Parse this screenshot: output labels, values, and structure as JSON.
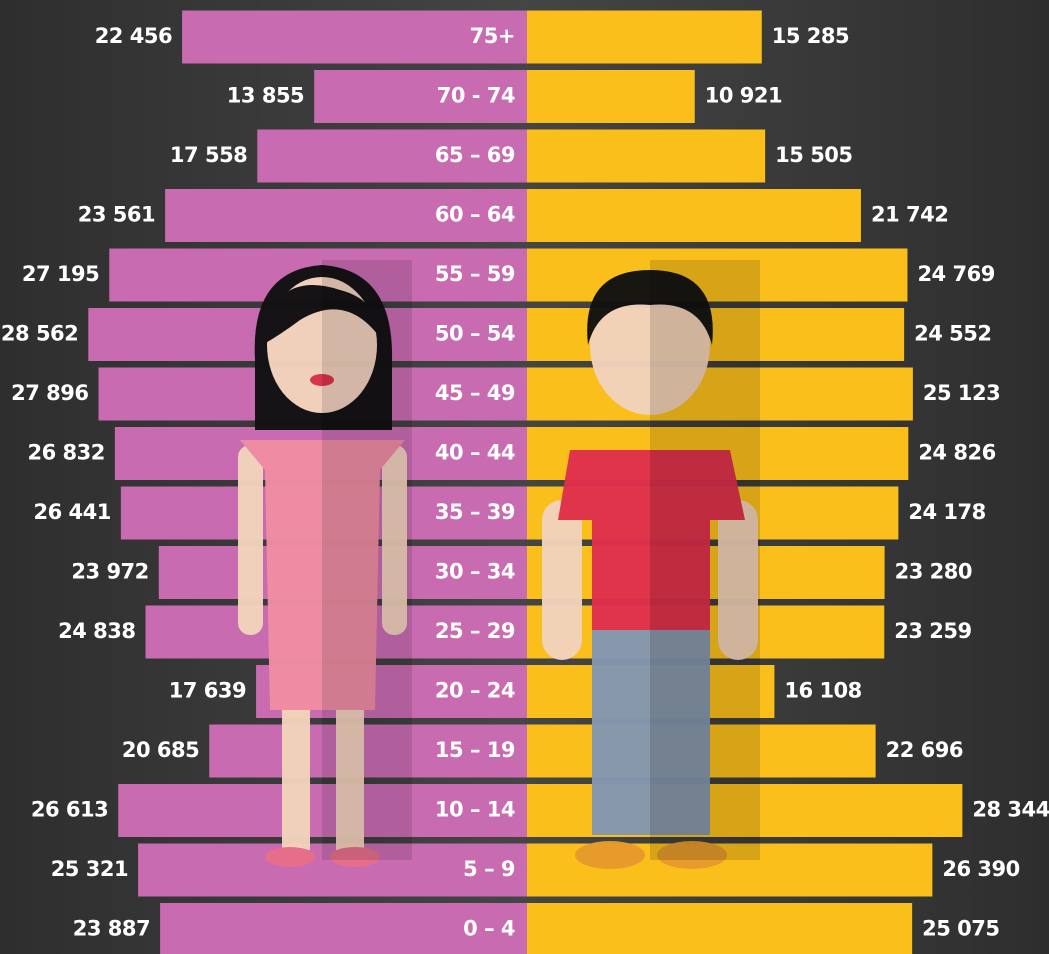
{
  "chart_data": {
    "type": "pyramid",
    "categories": [
      "75+",
      "70 - 74",
      "65 – 69",
      "60 – 64",
      "55 – 59",
      "50 – 54",
      "45 – 49",
      "40 – 44",
      "35 – 39",
      "30 – 34",
      "25 – 29",
      "20 – 24",
      "15 – 19",
      "10 – 14",
      "5 – 9",
      "0 – 4"
    ],
    "series": [
      {
        "color": "#c86bb1",
        "side": "left",
        "values": [
          22456,
          13855,
          17558,
          23561,
          27195,
          28562,
          27896,
          26832,
          26441,
          23972,
          24838,
          17639,
          20685,
          26613,
          25321,
          23887
        ],
        "value_labels": [
          "22 456",
          "13 855",
          "17 558",
          "23 561",
          "27 195",
          "28 562",
          "27 896",
          "26 832",
          "26 441",
          "23 972",
          "24 838",
          "17 639",
          "20 685",
          "26 613",
          "25 321",
          "23 887"
        ]
      },
      {
        "color": "#fbbf1b",
        "side": "right",
        "values": [
          15285,
          10921,
          15505,
          21742,
          24769,
          24552,
          25123,
          24826,
          24178,
          23280,
          23259,
          16108,
          22696,
          28344,
          26390,
          25075
        ],
        "value_labels": [
          "15 285",
          "10 921",
          "15 505",
          "21 742",
          "24 769",
          "24 552",
          "25 123",
          "24 826",
          "24 178",
          "23 280",
          "23 259",
          "16 108",
          "22 696",
          "28 344",
          "26 390",
          "25 075"
        ]
      }
    ]
  }
}
